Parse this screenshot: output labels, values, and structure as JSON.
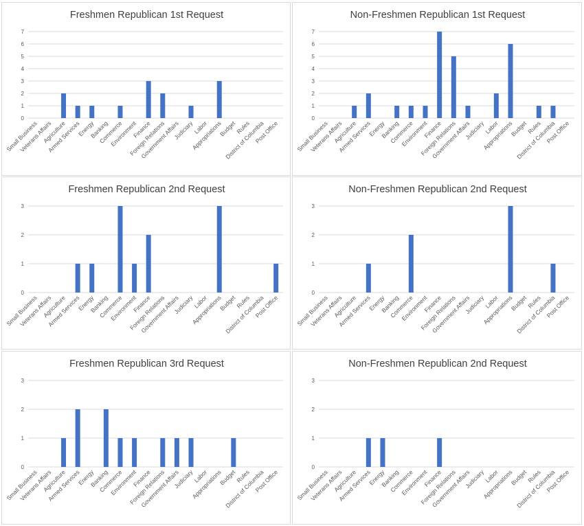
{
  "chart_data": [
    {
      "type": "bar",
      "title": "Freshmen Republican 1st Request",
      "categories": [
        "Small Business",
        "Veterans Affairs",
        "Agriculture",
        "Armed Services",
        "Energy",
        "Banking",
        "Commerce",
        "Environment",
        "Finance",
        "Foreign Relations",
        "Government Affairs",
        "Judiciary",
        "Labor",
        "Appropriations",
        "Budget",
        "Rules",
        "District of Columbia",
        "Post Office"
      ],
      "values": [
        0,
        0,
        2,
        1,
        1,
        0,
        1,
        0,
        3,
        2,
        0,
        1,
        0,
        3,
        0,
        0,
        0,
        0
      ],
      "ylim": [
        0,
        7
      ],
      "yticks": [
        0,
        1,
        2,
        3,
        4,
        5,
        6,
        7
      ],
      "xlabel": "",
      "ylabel": "",
      "grid": true,
      "color": "#4472c4"
    },
    {
      "type": "bar",
      "title": "Non-Freshmen Republican 1st Request",
      "categories": [
        "Small Business",
        "Veterans Affairs",
        "Agriculture",
        "Armed Services",
        "Energy",
        "Banking",
        "Commerce",
        "Environment",
        "Finance",
        "Foreign Relations",
        "Government Affairs",
        "Judiciary",
        "Labor",
        "Appropriations",
        "Budget",
        "Rules",
        "District of Columbia",
        "Post Office"
      ],
      "values": [
        0,
        0,
        1,
        2,
        0,
        1,
        1,
        1,
        7,
        5,
        1,
        0,
        2,
        6,
        0,
        1,
        1,
        0
      ],
      "ylim": [
        0,
        7
      ],
      "yticks": [
        0,
        1,
        2,
        3,
        4,
        5,
        6,
        7
      ],
      "xlabel": "",
      "ylabel": "",
      "grid": true,
      "color": "#4472c4"
    },
    {
      "type": "bar",
      "title": "Freshmen Republican 2nd Request",
      "categories": [
        "Small Business",
        "Veterans Affairs",
        "Agriculture",
        "Armed Services",
        "Energy",
        "Banking",
        "Commerce",
        "Environment",
        "Finance",
        "Foreign Relations",
        "Government Affairs",
        "Judiciary",
        "Labor",
        "Appropriations",
        "Budget",
        "Rules",
        "District of Columbia",
        "Post Office"
      ],
      "values": [
        0,
        0,
        0,
        1,
        1,
        0,
        3,
        1,
        2,
        0,
        0,
        0,
        0,
        3,
        0,
        0,
        0,
        1
      ],
      "ylim": [
        0,
        3
      ],
      "yticks": [
        0,
        1,
        2,
        3
      ],
      "xlabel": "",
      "ylabel": "",
      "grid": true,
      "color": "#4472c4"
    },
    {
      "type": "bar",
      "title": "Non-Freshmen Republican 2nd Request",
      "categories": [
        "Small Business",
        "Veterans Affairs",
        "Agriculture",
        "Armed Services",
        "Energy",
        "Banking",
        "Commerce",
        "Environment",
        "Finance",
        "Foreign Relations",
        "Government Affairs",
        "Judiciary",
        "Labor",
        "Appropriations",
        "Budget",
        "Rules",
        "District of Columbia",
        "Post Office"
      ],
      "values": [
        0,
        0,
        0,
        1,
        0,
        0,
        2,
        0,
        0,
        0,
        0,
        0,
        0,
        3,
        0,
        0,
        1,
        0
      ],
      "ylim": [
        0,
        3
      ],
      "yticks": [
        0,
        1,
        2,
        3
      ],
      "xlabel": "",
      "ylabel": "",
      "grid": true,
      "color": "#4472c4"
    },
    {
      "type": "bar",
      "title": "Freshmen Republican 3rd Request",
      "categories": [
        "Small Business",
        "Veterans Affairs",
        "Agriculture",
        "Armed Services",
        "Energy",
        "Banking",
        "Commerce",
        "Environment",
        "Finance",
        "Foreign Relations",
        "Government Affairs",
        "Judiciary",
        "Labor",
        "Appropriations",
        "Budget",
        "Rules",
        "District of Columbia",
        "Post Office"
      ],
      "values": [
        0,
        0,
        1,
        2,
        0,
        2,
        1,
        1,
        0,
        1,
        1,
        1,
        0,
        0,
        1,
        0,
        0,
        0
      ],
      "ylim": [
        0,
        3
      ],
      "yticks": [
        0,
        1,
        2,
        3
      ],
      "xlabel": "",
      "ylabel": "",
      "grid": true,
      "color": "#4472c4"
    },
    {
      "type": "bar",
      "title": "Non-Freshmen Republican 2nd Request",
      "categories": [
        "Small Business",
        "Veterans Affairs",
        "Agriculture",
        "Armed Services",
        "Energy",
        "Banking",
        "Commerce",
        "Environment",
        "Finance",
        "Foreign Relations",
        "Government Affairs",
        "Judiciary",
        "Labor",
        "Appropriations",
        "Budget",
        "Rules",
        "District of Columbia",
        "Post Office"
      ],
      "values": [
        0,
        0,
        0,
        1,
        1,
        0,
        0,
        0,
        1,
        0,
        0,
        0,
        0,
        0,
        0,
        0,
        0,
        0
      ],
      "ylim": [
        0,
        3
      ],
      "yticks": [
        0,
        1,
        2,
        3
      ],
      "xlabel": "",
      "ylabel": "",
      "grid": true,
      "color": "#4472c4"
    }
  ]
}
